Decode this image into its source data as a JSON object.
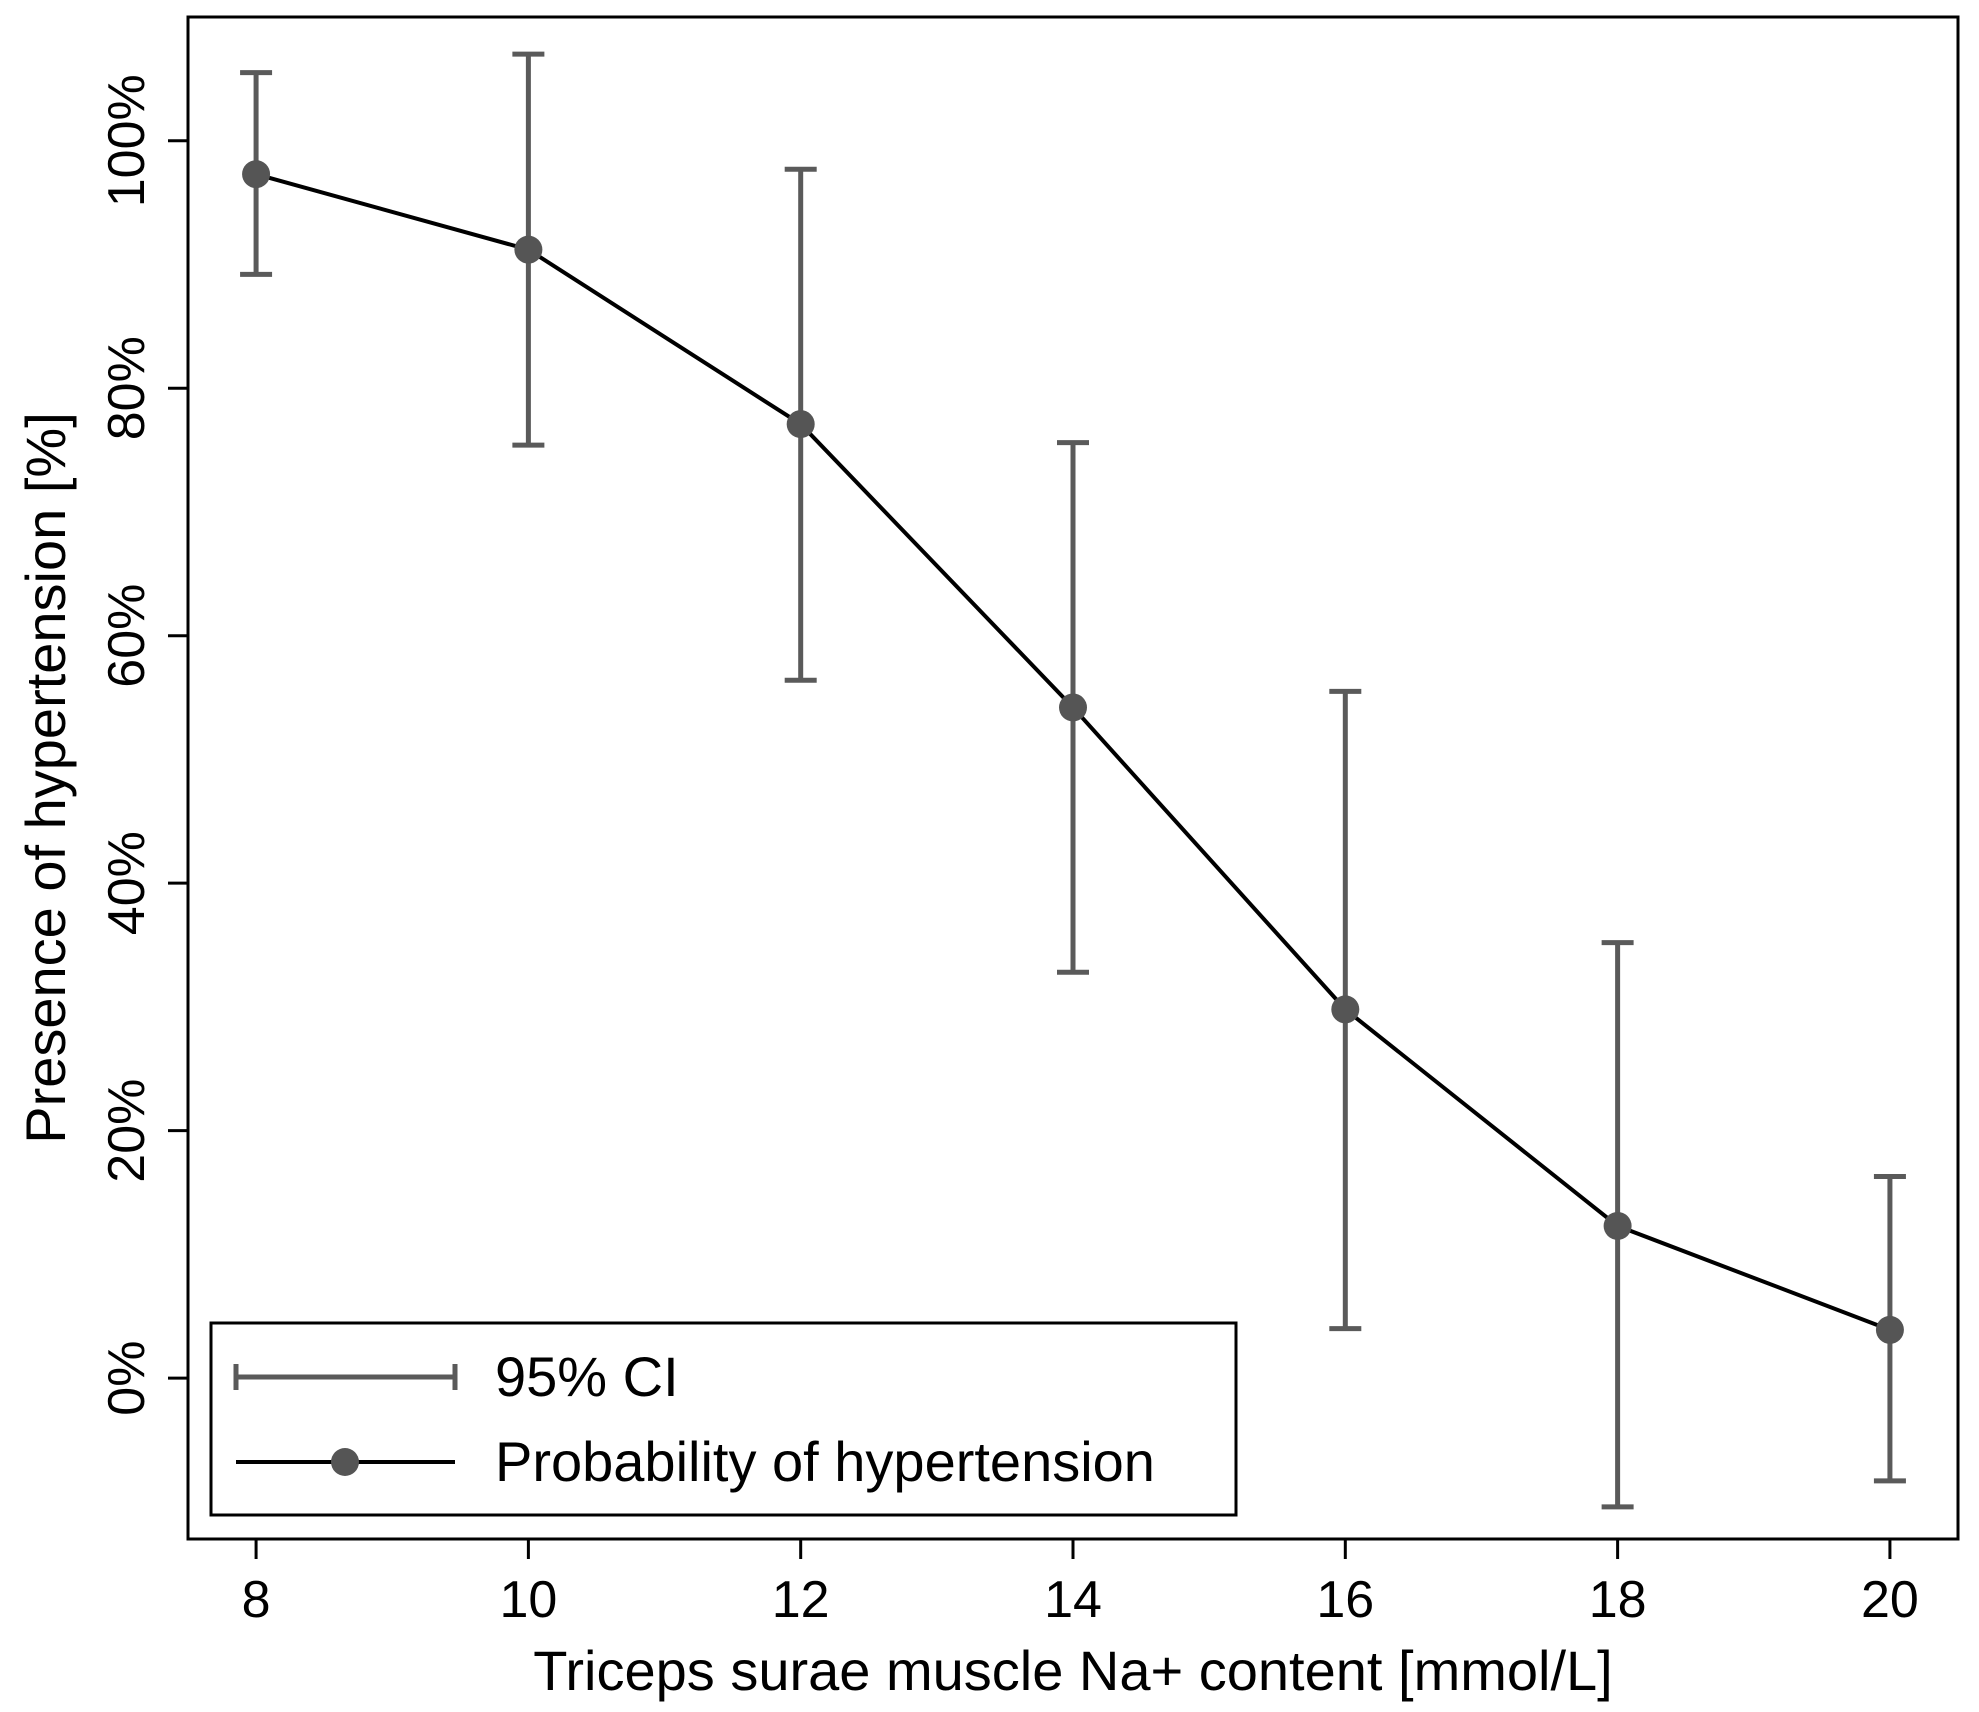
{
  "chart_data": {
    "type": "line",
    "title": "",
    "xlabel": "Triceps surae muscle Na+ content [mmol/L]",
    "ylabel": "Presence of hypertension [%]",
    "xlim": [
      7.5,
      20.5
    ],
    "ylim": [
      -0.13,
      1.1
    ],
    "x_ticks": [
      8,
      10,
      12,
      14,
      16,
      18,
      20
    ],
    "x_tick_labels": [
      "8",
      "10",
      "12",
      "14",
      "16",
      "18",
      "20"
    ],
    "y_ticks": [
      0,
      0.2,
      0.4,
      0.6,
      0.8,
      1.0
    ],
    "y_tick_labels": [
      "0%",
      "20%",
      "40%",
      "60%",
      "80%",
      "100%"
    ],
    "grid": false,
    "legend_position": "bottom-left",
    "legend": [
      "95% CI",
      "Probability of hypertension"
    ],
    "series": [
      {
        "name": "Probability of hypertension",
        "x": [
          8,
          10,
          12,
          14,
          16,
          18,
          20
        ],
        "values": [
          0.973,
          0.912,
          0.771,
          0.542,
          0.298,
          0.123,
          0.039
        ]
      }
    ],
    "ci": {
      "name": "95% CI",
      "lower": [
        0.892,
        0.754,
        0.564,
        0.328,
        0.04,
        -0.104,
        -0.083
      ],
      "upper": [
        1.055,
        1.07,
        0.977,
        0.756,
        0.555,
        0.352,
        0.163
      ]
    },
    "colors": {
      "line": "#000000",
      "marker": "#555555",
      "ci": "#5a5a5a",
      "frame": "#000000"
    }
  }
}
